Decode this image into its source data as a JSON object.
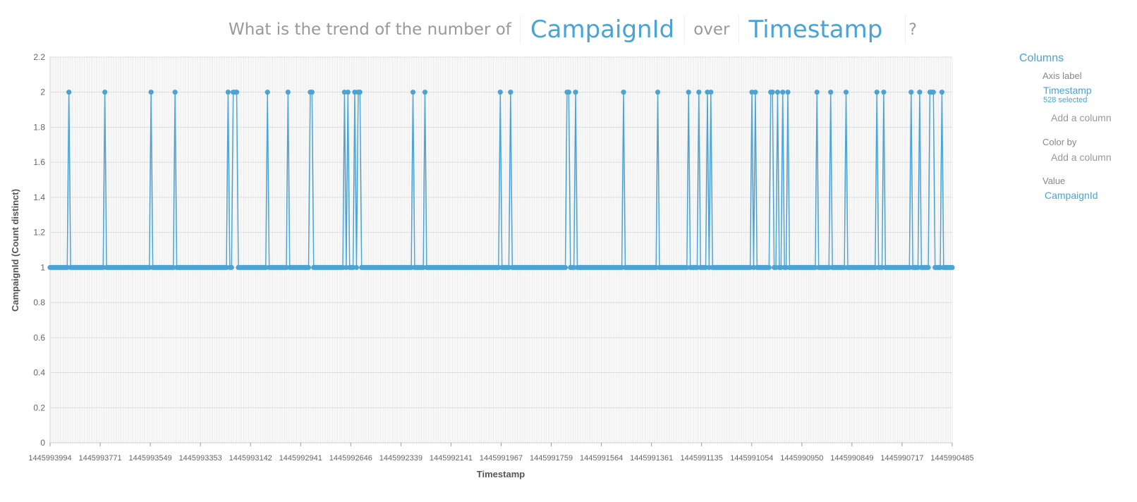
{
  "question": {
    "prefix": "What is the trend of the number of",
    "field1": "CampaignId",
    "middle": "over",
    "field2": "Timestamp",
    "suffix": "?"
  },
  "panel": {
    "title": "Columns",
    "axis_label": "Axis label",
    "axis_value": "Timestamp",
    "axis_selected": "528 selected",
    "add_column_1": "Add a column",
    "color_by": "Color by",
    "add_column_2": "Add a column",
    "value_label": "Value",
    "value_value": "CampaignId"
  },
  "colors": {
    "accent": "#4aa3d4",
    "grid": "#e0e0e0",
    "text": "#666666"
  },
  "chart_data": {
    "type": "line",
    "xlabel": "Timestamp",
    "ylabel": "CampaignId (Count distinct)",
    "ylim": [
      0,
      2.2
    ],
    "yticks": [
      0,
      0.2,
      0.4,
      0.6,
      0.8,
      1,
      1.2,
      1.4,
      1.6,
      1.8,
      2,
      2.2
    ],
    "x_count": 528,
    "xtick_labels": [
      "1445993994",
      "1445993771",
      "1445993549",
      "1445993353",
      "1445993142",
      "1445992941",
      "1445992646",
      "1445992339",
      "1445992141",
      "1445991967",
      "1445991759",
      "1445991564",
      "1445991361",
      "1445991135",
      "1445991054",
      "1445990950",
      "1445990849",
      "1445990717",
      "1445990485"
    ],
    "value_two_at_indices": [
      11,
      32,
      59,
      73,
      104,
      107,
      108,
      109,
      127,
      139,
      152,
      153,
      172,
      174,
      178,
      180,
      181,
      212,
      219,
      263,
      269,
      302,
      303,
      307,
      335,
      355,
      373,
      379,
      384,
      386,
      410,
      412,
      421,
      422,
      425,
      428,
      431,
      448,
      456,
      465,
      483,
      487,
      503,
      508,
      514,
      515,
      516,
      521
    ],
    "default_value": 1
  }
}
